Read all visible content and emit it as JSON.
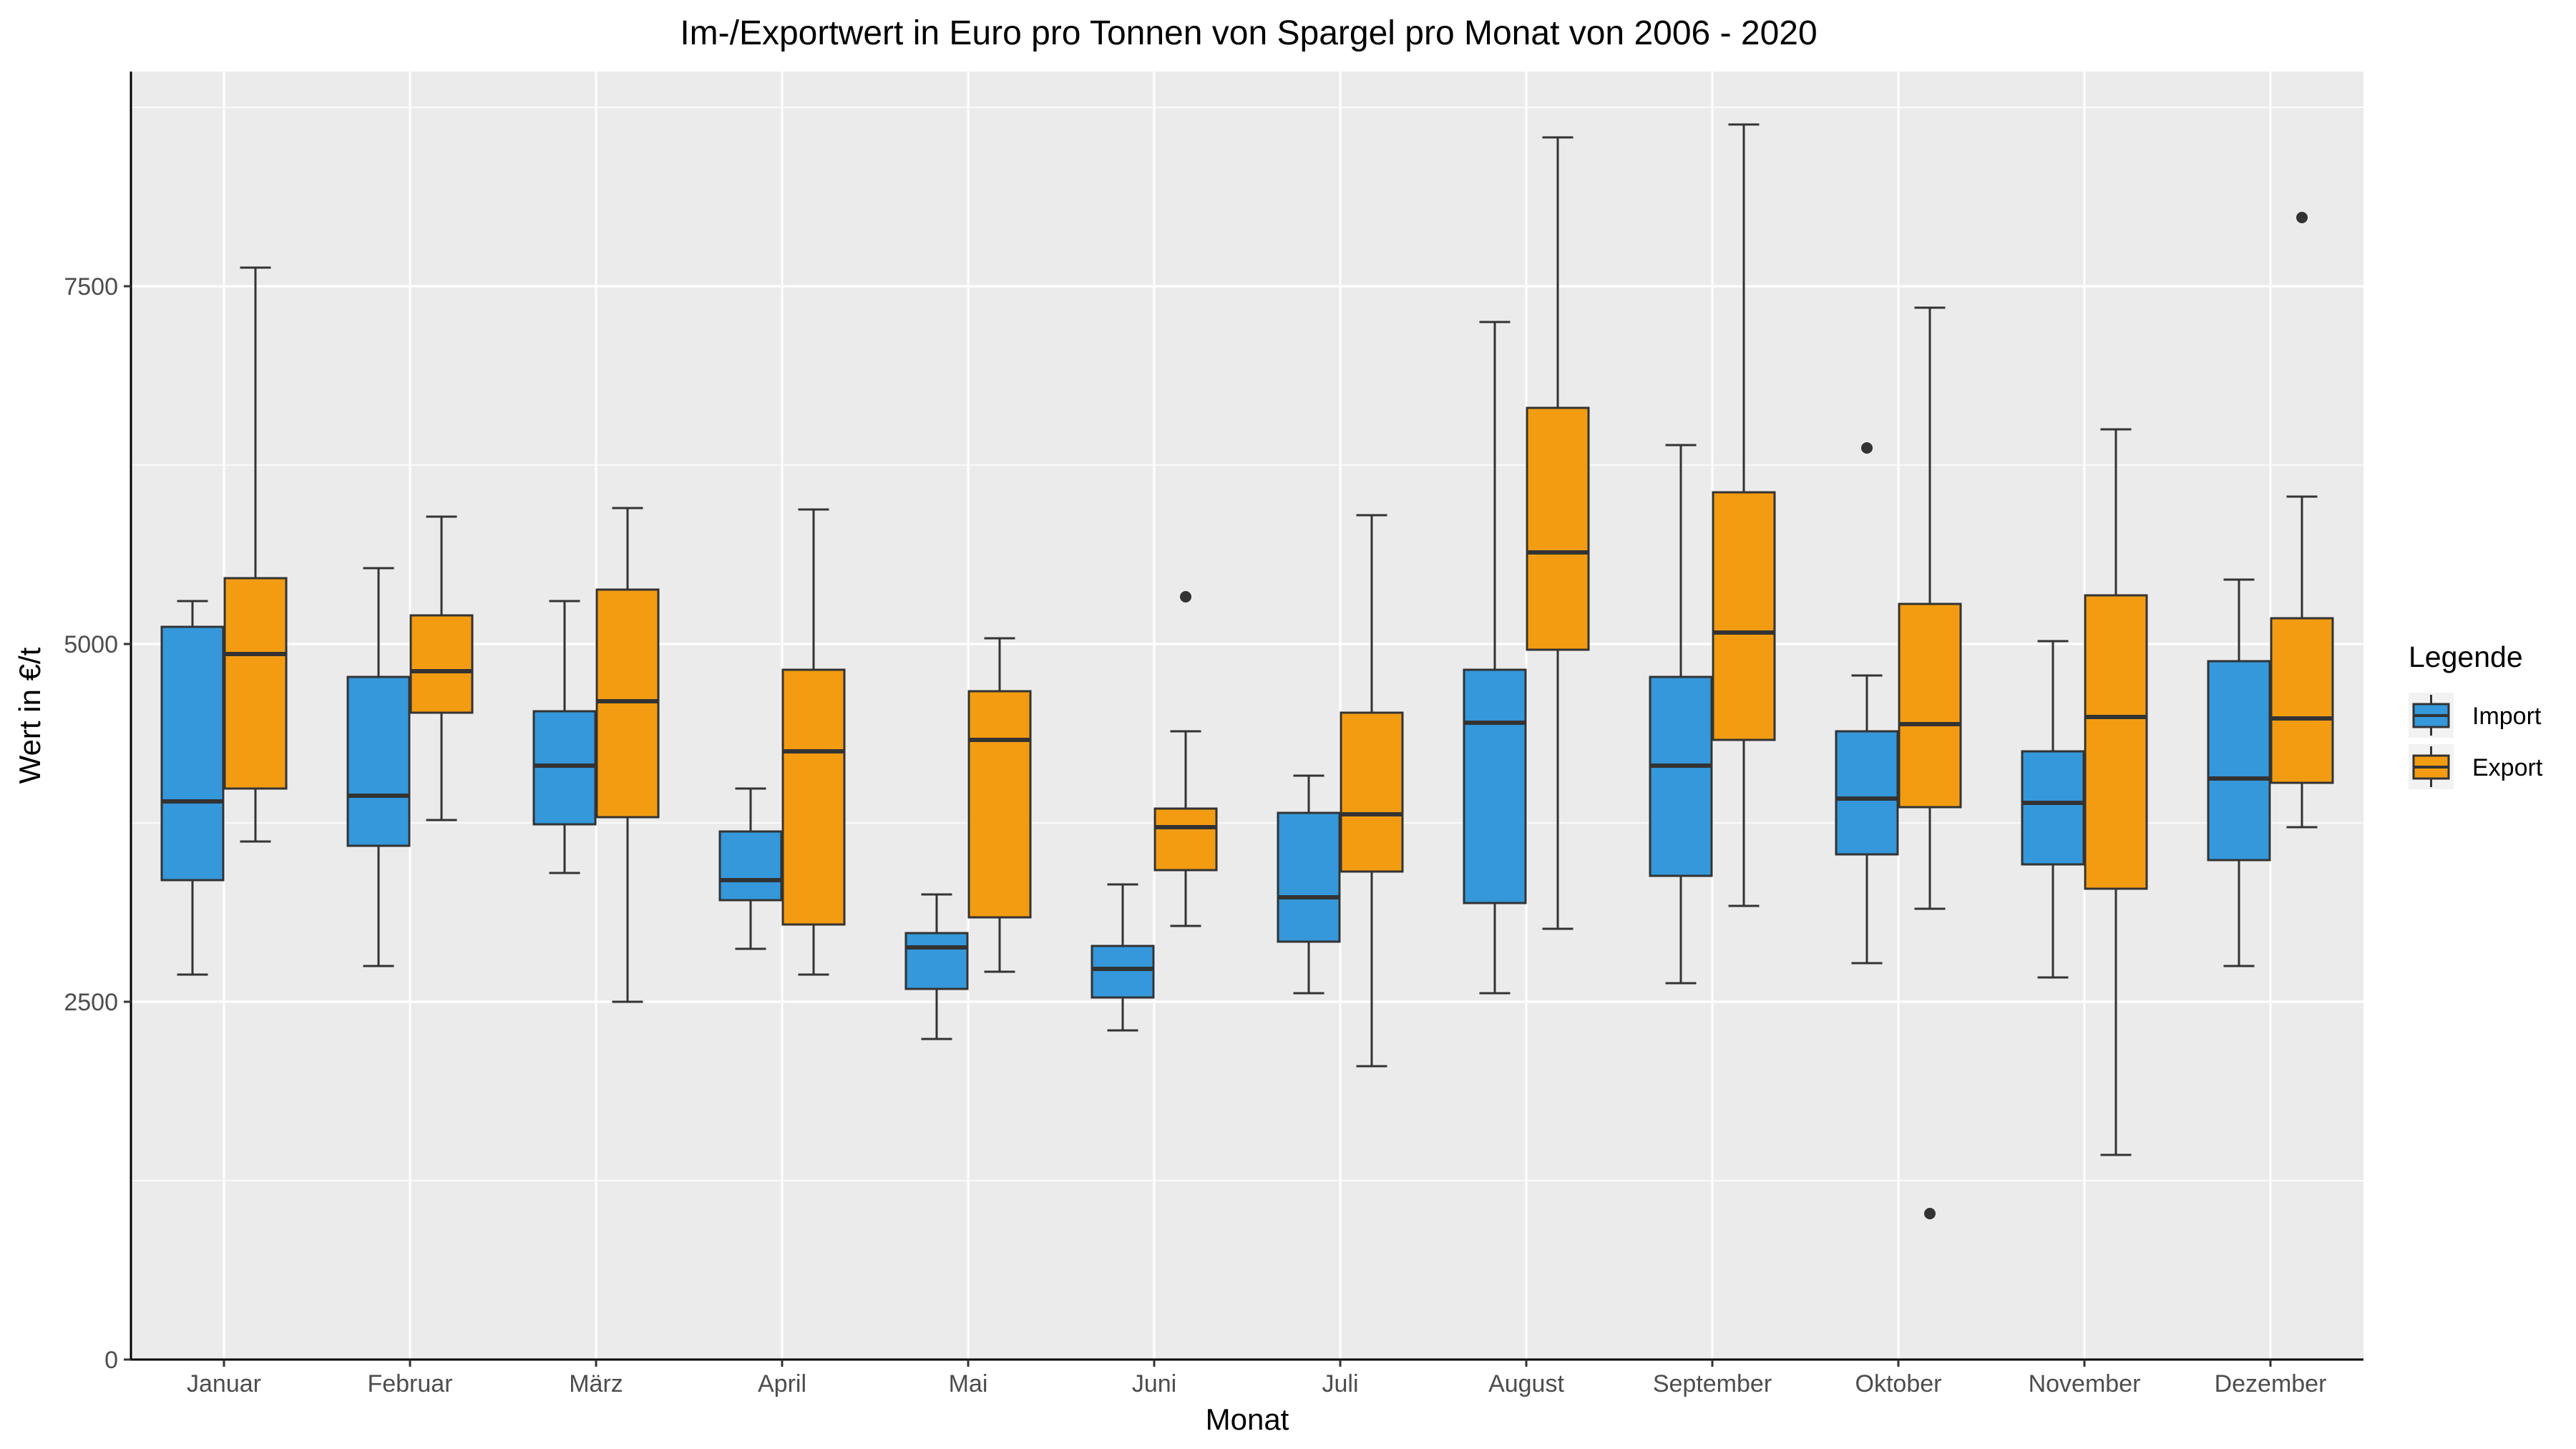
{
  "chart_data": {
    "type": "boxplot",
    "title": "Im-/Exportwert in Euro pro Tonnen von Spargel pro Monat von 2006 - 2020",
    "xlabel": "Monat",
    "ylabel": "Wert in €/t",
    "ylim": [
      0,
      9000
    ],
    "yticks": [
      0,
      2500,
      5000,
      7500
    ],
    "ytick_labels": [
      "0",
      "2500",
      "5000",
      "7500"
    ],
    "grid": true,
    "legend": {
      "title": "Legende",
      "position": "right"
    },
    "categories": [
      "Januar",
      "Februar",
      "März",
      "April",
      "Mai",
      "Juni",
      "Juli",
      "August",
      "September",
      "Oktober",
      "November",
      "Dezember"
    ],
    "series": [
      {
        "name": "Import",
        "color": "#3498db",
        "boxes": [
          {
            "low": 2690,
            "q1": 3350,
            "median": 3900,
            "q3": 5120,
            "high": 5300,
            "outliers": []
          },
          {
            "low": 2750,
            "q1": 3590,
            "median": 3940,
            "q3": 4770,
            "high": 5530,
            "outliers": []
          },
          {
            "low": 3400,
            "q1": 3740,
            "median": 4150,
            "q3": 4530,
            "high": 5300,
            "outliers": []
          },
          {
            "low": 2870,
            "q1": 3210,
            "median": 3350,
            "q3": 3690,
            "high": 3990,
            "outliers": []
          },
          {
            "low": 2240,
            "q1": 2590,
            "median": 2880,
            "q3": 2980,
            "high": 3250,
            "outliers": []
          },
          {
            "low": 2300,
            "q1": 2530,
            "median": 2730,
            "q3": 2890,
            "high": 3320,
            "outliers": []
          },
          {
            "low": 2560,
            "q1": 2920,
            "median": 3230,
            "q3": 3820,
            "high": 4080,
            "outliers": []
          },
          {
            "low": 2560,
            "q1": 3190,
            "median": 4450,
            "q3": 4820,
            "high": 7250,
            "outliers": []
          },
          {
            "low": 2630,
            "q1": 3380,
            "median": 4150,
            "q3": 4770,
            "high": 6390,
            "outliers": []
          },
          {
            "low": 2770,
            "q1": 3530,
            "median": 3920,
            "q3": 4390,
            "high": 4780,
            "outliers": [
              6370
            ]
          },
          {
            "low": 2670,
            "q1": 3460,
            "median": 3890,
            "q3": 4250,
            "high": 5020,
            "outliers": []
          },
          {
            "low": 2750,
            "q1": 3490,
            "median": 4060,
            "q3": 4880,
            "high": 5450,
            "outliers": []
          }
        ]
      },
      {
        "name": "Export",
        "color": "#f39c12",
        "boxes": [
          {
            "low": 3620,
            "q1": 3990,
            "median": 4930,
            "q3": 5460,
            "high": 7630,
            "outliers": []
          },
          {
            "low": 3770,
            "q1": 4520,
            "median": 4810,
            "q3": 5200,
            "high": 5890,
            "outliers": []
          },
          {
            "low": 2500,
            "q1": 3790,
            "median": 4600,
            "q3": 5380,
            "high": 5950,
            "outliers": []
          },
          {
            "low": 2690,
            "q1": 3040,
            "median": 4250,
            "q3": 4820,
            "high": 5940,
            "outliers": []
          },
          {
            "low": 2710,
            "q1": 3090,
            "median": 4330,
            "q3": 4670,
            "high": 5040,
            "outliers": []
          },
          {
            "low": 3030,
            "q1": 3420,
            "median": 3720,
            "q3": 3850,
            "high": 4390,
            "outliers": [
              5330
            ]
          },
          {
            "low": 2050,
            "q1": 3410,
            "median": 3810,
            "q3": 4520,
            "high": 5900,
            "outliers": []
          },
          {
            "low": 3010,
            "q1": 4960,
            "median": 5640,
            "q3": 6650,
            "high": 8540,
            "outliers": []
          },
          {
            "low": 3170,
            "q1": 4330,
            "median": 5080,
            "q3": 6060,
            "high": 8630,
            "outliers": []
          },
          {
            "low": 3150,
            "q1": 3860,
            "median": 4440,
            "q3": 5280,
            "high": 7350,
            "outliers": [
              1020
            ]
          },
          {
            "low": 1430,
            "q1": 3290,
            "median": 4490,
            "q3": 5340,
            "high": 6500,
            "outliers": []
          },
          {
            "low": 3720,
            "q1": 4030,
            "median": 4480,
            "q3": 5180,
            "high": 6030,
            "outliers": [
              7980
            ]
          }
        ]
      }
    ]
  }
}
